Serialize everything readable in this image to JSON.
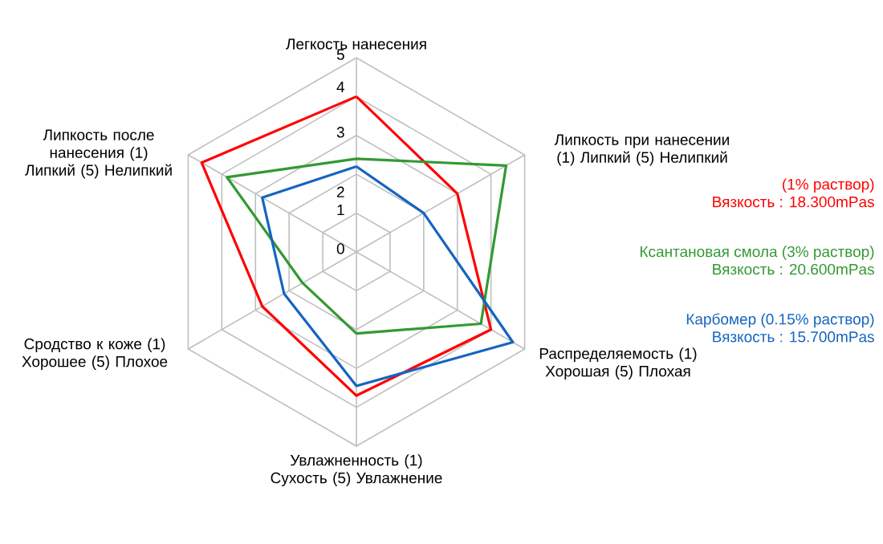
{
  "chart_data": {
    "type": "radar",
    "categories": [
      "Легкость нанесения",
      "Липкость при нанесении (1) Липкий (5) Нелипкий",
      "Распределяемость (1) Хорошая (5) Плохая",
      "Увлажненность (1) Сухость (5) Увлажнение",
      "Сродство к коже (1) Хорошее (5) Плохое",
      "Липкость после нанесения (1) Липкий (5) Нелипкий"
    ],
    "series": [
      {
        "name": "(1% раствор)",
        "color": "#ff0000",
        "values": [
          4,
          3,
          4,
          3.7,
          2.8,
          4.6
        ]
      },
      {
        "name": "Ксантановая смола (3% раствор)",
        "color": "#339933",
        "values": [
          2.4,
          4.45,
          3.7,
          2.1,
          1.6,
          3.85
        ]
      },
      {
        "name": "Карбомер (0.15% раствор)",
        "color": "#1565c0",
        "values": [
          2.2,
          2,
          4.65,
          3.45,
          2.15,
          2.8
        ]
      }
    ],
    "annotations": [
      "Вязкость : 18.300mPas",
      "Вязкость : 20.600mPas",
      "Вязкость : 15.700mPas"
    ],
    "ylim": [
      0,
      5
    ],
    "yticks": [
      0,
      1,
      2,
      3,
      4,
      5
    ],
    "grid": true,
    "legend": "right",
    "line_style": "solid",
    "marker": "none"
  }
}
